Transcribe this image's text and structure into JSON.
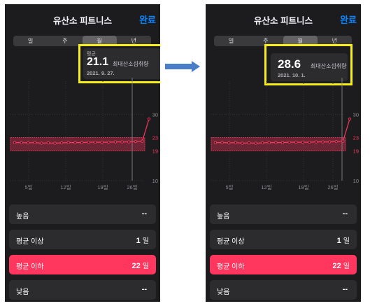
{
  "screens": [
    {
      "id": "left",
      "title": "유산소 피트니스",
      "done": "완료",
      "segments": [
        "일",
        "주",
        "월",
        "년"
      ],
      "selected_segment": 2,
      "stat": {
        "label": "평균",
        "value": "21.1",
        "unit": "최대산소섭취량",
        "date": "2021. 9. 27."
      },
      "rows": [
        {
          "label": "높음",
          "value": "--",
          "unit": ""
        },
        {
          "label": "평균 이상",
          "value": "1",
          "unit": "일"
        },
        {
          "label": "평균 이하",
          "value": "22",
          "unit": "일"
        },
        {
          "label": "낮음",
          "value": "--",
          "unit": ""
        }
      ]
    },
    {
      "id": "right",
      "title": "유산소 피트니스",
      "done": "완료",
      "segments": [
        "일",
        "주",
        "월",
        "년"
      ],
      "selected_segment": 2,
      "stat": {
        "label": "",
        "value": "28.6",
        "unit": "최대산소섭취량",
        "date": "2021. 10. 1."
      },
      "rows": [
        {
          "label": "높음",
          "value": "--",
          "unit": ""
        },
        {
          "label": "평균 이상",
          "value": "1",
          "unit": "일"
        },
        {
          "label": "평균 이하",
          "value": "22",
          "unit": "일"
        },
        {
          "label": "낮음",
          "value": "--",
          "unit": ""
        }
      ]
    }
  ],
  "colors": {
    "accent": "#ff375f",
    "highlight": "#f7ef1c",
    "link": "#0a84ff",
    "arrow": "#4a7fc8"
  },
  "chart_data": {
    "type": "line",
    "x_ticks": [
      "5일",
      "12일",
      "19일",
      "26일"
    ],
    "y_ticks": [
      30,
      23,
      19,
      10
    ],
    "band": [
      19,
      23
    ],
    "ylim": [
      10,
      40
    ],
    "series": [
      {
        "values": [
          21.5,
          21.5,
          21.4,
          21.5,
          21.3,
          21.4,
          21.3,
          21.4,
          21.5,
          21.5,
          21.5,
          21.6,
          21.6,
          21.6,
          21.6,
          21.7,
          21.7,
          21.7,
          21.8,
          21.9,
          28.6
        ]
      }
    ]
  }
}
